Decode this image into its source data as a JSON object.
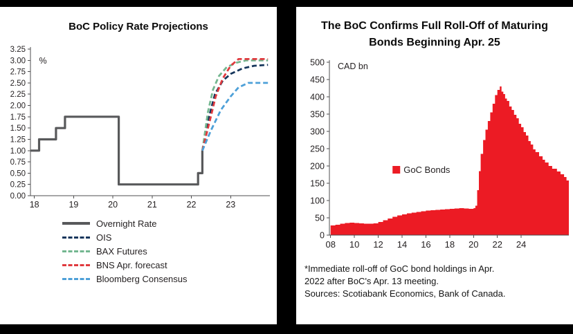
{
  "window": {
    "background": "#000000",
    "panel_background": "#ffffff"
  },
  "left_chart": {
    "title": "BoC Policy Rate Projections"
  },
  "right_chart": {
    "title": "The BoC Confirms Full Roll-Off of Maturing Bonds Beginning Apr. 25",
    "footnote_line1": "*Immediate roll-off of GoC bond holdings in Apr.",
    "footnote_line2": "2022 after BoC's Apr. 13 meeting.",
    "sources_line": "Sources: Scotiabank Economics, Bank of Canada."
  },
  "chart_data": [
    {
      "type": "line",
      "title": "BoC Policy Rate Projections",
      "ylabel": "%",
      "ylim": [
        0,
        3.25
      ],
      "ytick_step": 0.25,
      "ytick_decimals": 2,
      "xlim": [
        17.9,
        24.0
      ],
      "xticks": [
        18,
        19,
        20,
        21,
        22,
        23
      ],
      "xtick_labels": [
        "18",
        "19",
        "20",
        "21",
        "22",
        "23"
      ],
      "grid": false,
      "legend_position": "below",
      "series": [
        {
          "name": "Overnight Rate",
          "color": "#58595b",
          "style": "solid",
          "width": 3.2,
          "x": [
            17.9,
            18.12,
            18.12,
            18.55,
            18.55,
            18.78,
            18.78,
            20.15,
            20.15,
            22.17,
            22.17,
            22.28,
            22.28
          ],
          "y": [
            1.0,
            1.0,
            1.25,
            1.25,
            1.5,
            1.5,
            1.75,
            1.75,
            0.25,
            0.25,
            0.5,
            0.5,
            1.0
          ]
        },
        {
          "name": "OIS",
          "color": "#16365c",
          "style": "dashed",
          "width": 2.8,
          "x": [
            22.28,
            22.45,
            22.6,
            22.8,
            23.0,
            23.3,
            23.6,
            23.95
          ],
          "y": [
            1.0,
            1.75,
            2.25,
            2.55,
            2.7,
            2.82,
            2.88,
            2.9
          ]
        },
        {
          "name": "BAX Futures",
          "color": "#74b790",
          "style": "dashed",
          "width": 2.8,
          "x": [
            22.28,
            22.42,
            22.55,
            22.7,
            22.9,
            23.15,
            23.4,
            23.95
          ],
          "y": [
            1.0,
            1.85,
            2.35,
            2.65,
            2.85,
            2.95,
            3.0,
            3.0
          ]
        },
        {
          "name": "BNS Apr. forecast",
          "color": "#e03a3e",
          "style": "dashed",
          "width": 2.8,
          "x": [
            22.28,
            22.48,
            22.62,
            22.8,
            23.0,
            23.2,
            23.95
          ],
          "y": [
            1.0,
            1.7,
            2.2,
            2.6,
            2.88,
            3.03,
            3.03
          ]
        },
        {
          "name": "Bloomberg Consensus",
          "color": "#4da0d8",
          "style": "dashed",
          "width": 2.8,
          "x": [
            22.28,
            22.5,
            22.75,
            23.0,
            23.2,
            23.45,
            23.95
          ],
          "y": [
            1.0,
            1.45,
            1.9,
            2.2,
            2.4,
            2.5,
            2.5
          ]
        }
      ]
    },
    {
      "type": "area",
      "title": "The BoC Confirms Full Roll-Off of Maturing Bonds Beginning Apr. 25",
      "ylabel": "CAD bn",
      "ylim": [
        0,
        500
      ],
      "ytick_step": 50,
      "ytick_decimals": 0,
      "xlim": [
        2007.9,
        2028
      ],
      "xticks": [
        2008,
        2010,
        2012,
        2014,
        2016,
        2018,
        2020,
        2022,
        2024
      ],
      "xtick_labels": [
        "08",
        "10",
        "12",
        "14",
        "16",
        "18",
        "20",
        "22",
        "24"
      ],
      "grid": false,
      "color": "#ec1b24",
      "legend": {
        "label": "GoC Bonds",
        "x": 2013.2,
        "y": 200
      },
      "x": [
        2008.0,
        2008.4,
        2008.8,
        2009.2,
        2009.6,
        2010.0,
        2010.4,
        2010.8,
        2011.2,
        2011.6,
        2012.0,
        2012.4,
        2012.8,
        2013.2,
        2013.6,
        2014.0,
        2014.4,
        2014.8,
        2015.2,
        2015.6,
        2016.0,
        2016.4,
        2016.8,
        2017.2,
        2017.6,
        2018.0,
        2018.4,
        2018.8,
        2019.2,
        2019.6,
        2020.0,
        2020.15,
        2020.3,
        2020.45,
        2020.6,
        2020.8,
        2021.0,
        2021.2,
        2021.4,
        2021.6,
        2021.8,
        2022.0,
        2022.2,
        2022.35,
        2022.5,
        2022.65,
        2022.8,
        2023.0,
        2023.2,
        2023.4,
        2023.6,
        2023.8,
        2024.0,
        2024.2,
        2024.4,
        2024.6,
        2024.8,
        2025.0,
        2025.2,
        2025.5,
        2025.8,
        2026.0,
        2026.3,
        2026.6,
        2027.0,
        2027.3,
        2027.6,
        2027.8,
        2028.0
      ],
      "values": [
        28,
        30,
        33,
        35,
        36,
        35,
        34,
        33,
        33,
        34,
        38,
        43,
        48,
        53,
        57,
        60,
        63,
        65,
        67,
        69,
        71,
        72,
        73,
        74,
        75,
        76,
        77,
        78,
        77,
        76,
        78,
        85,
        130,
        185,
        235,
        275,
        305,
        330,
        355,
        380,
        405,
        420,
        430,
        415,
        408,
        395,
        388,
        372,
        362,
        348,
        338,
        322,
        312,
        298,
        288,
        272,
        262,
        248,
        240,
        228,
        218,
        210,
        200,
        192,
        184,
        176,
        168,
        158,
        152
      ]
    }
  ]
}
